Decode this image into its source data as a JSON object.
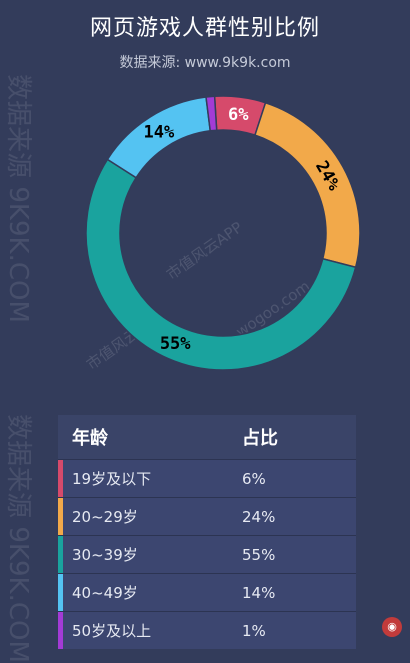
{
  "title": "网页游戏人群性别比例",
  "subtitle": "数据来源: www.9k9k.com",
  "watermark_vertical": "数据来源 9K9K.COM",
  "watermark_small": "市值风云APP",
  "watermark_domain": "wogoo.com",
  "chart_data": {
    "type": "pie",
    "donut": true,
    "categories": [
      "19岁及以下",
      "20~29岁",
      "30~39岁",
      "40~49岁",
      "50岁及以上"
    ],
    "values": [
      6,
      24,
      55,
      14,
      1
    ],
    "labels": [
      "6%",
      "24%",
      "55%",
      "14%",
      ""
    ],
    "colors": [
      "#d64a6b",
      "#f2a94a",
      "#1aa39e",
      "#54c3f2",
      "#a33bd6"
    ],
    "label_colors": [
      "#ffffff",
      "#000000",
      "#000000",
      "#000000",
      "#ffffff"
    ]
  },
  "table": {
    "headers": [
      "年龄",
      "占比"
    ],
    "rows": [
      [
        "19岁及以下",
        "6%"
      ],
      [
        "20~29岁",
        "24%"
      ],
      [
        "30~39岁",
        "55%"
      ],
      [
        "40~49岁",
        "14%"
      ],
      [
        "50岁及以上",
        "1%"
      ]
    ]
  }
}
